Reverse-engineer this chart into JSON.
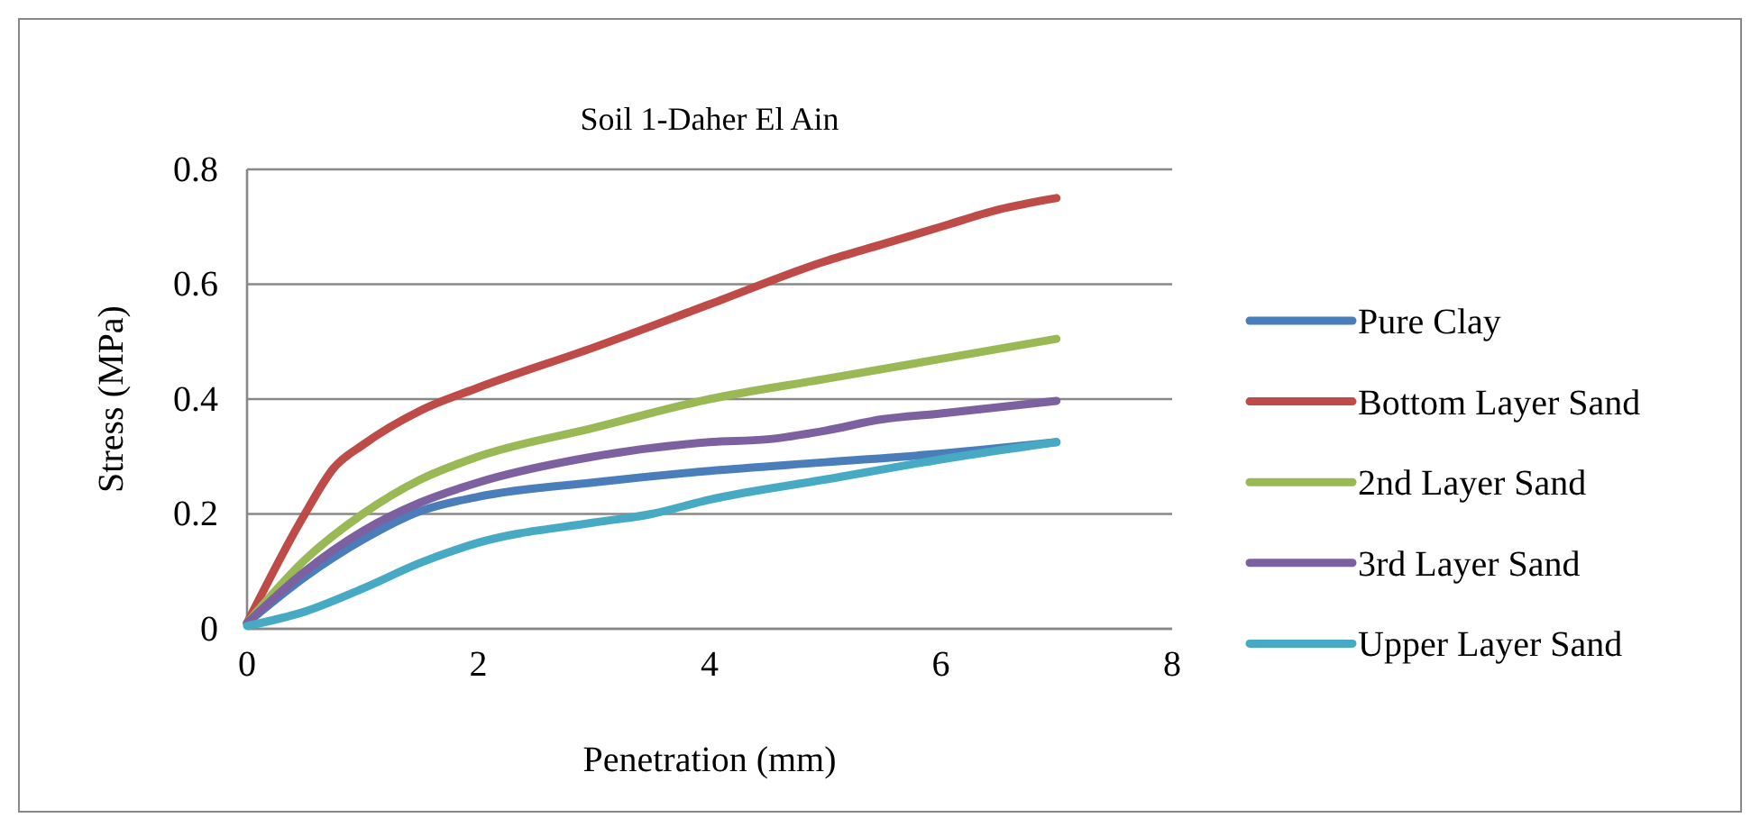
{
  "chart_data": {
    "type": "line",
    "title": "Soil 1-Daher El Ain",
    "xlabel": "Penetration (mm)",
    "ylabel": "Stress (MPa)",
    "xlim": [
      0,
      8
    ],
    "xticks": [
      0,
      2,
      4,
      6,
      8
    ],
    "ylim": [
      0,
      0.8
    ],
    "yticks": [
      0,
      0.2,
      0.4,
      0.6,
      0.8
    ],
    "grid": "y",
    "legend": "right",
    "marker": "none",
    "line_style": "solid",
    "series": [
      {
        "name": "Pure Clay",
        "color": "#4a7ebb",
        "x": [
          0,
          0.5,
          1,
          1.5,
          2,
          3,
          4,
          5,
          6,
          7
        ],
        "values": [
          0.01,
          0.09,
          0.155,
          0.205,
          0.23,
          0.255,
          0.275,
          0.29,
          0.305,
          0.325
        ]
      },
      {
        "name": "Bottom Layer Sand",
        "color": "#be4b48",
        "x": [
          0,
          0.5,
          0.75,
          1,
          1.5,
          2,
          3,
          4,
          5,
          5.5,
          6,
          6.5,
          7
        ],
        "values": [
          0.01,
          0.2,
          0.28,
          0.32,
          0.38,
          0.42,
          0.49,
          0.565,
          0.64,
          0.67,
          0.7,
          0.73,
          0.75
        ]
      },
      {
        "name": "2nd Layer Sand",
        "color": "#98b954",
        "x": [
          0,
          0.5,
          1,
          1.5,
          2,
          3,
          4,
          5,
          6,
          7
        ],
        "values": [
          0.01,
          0.12,
          0.2,
          0.26,
          0.3,
          0.35,
          0.4,
          0.435,
          0.47,
          0.505
        ]
      },
      {
        "name": "3rd Layer Sand",
        "color": "#7d60a0",
        "x": [
          0,
          0.5,
          1,
          1.5,
          2,
          3,
          4,
          4.5,
          5,
          5.5,
          6,
          7
        ],
        "values": [
          0.01,
          0.1,
          0.17,
          0.22,
          0.255,
          0.3,
          0.325,
          0.33,
          0.345,
          0.365,
          0.375,
          0.397
        ]
      },
      {
        "name": "Upper Layer Sand",
        "color": "#46aac5",
        "x": [
          0,
          0.5,
          1,
          1.5,
          2,
          3,
          3.5,
          4,
          5,
          6,
          7
        ],
        "values": [
          0.005,
          0.03,
          0.07,
          0.115,
          0.15,
          0.185,
          0.2,
          0.225,
          0.26,
          0.295,
          0.325
        ]
      }
    ]
  }
}
